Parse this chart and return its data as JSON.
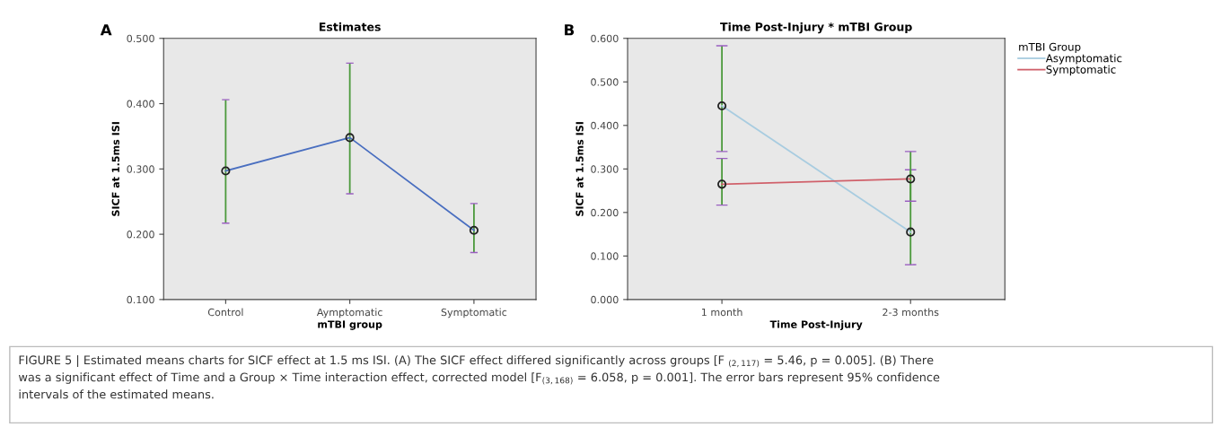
{
  "chart_data": [
    {
      "type": "line",
      "title": "Estimates",
      "xlabel": "mTBI group",
      "ylabel": "SICF at 1.5ms ISI",
      "categories": [
        "Control",
        "Aymptomatic",
        "Symptomatic"
      ],
      "series": [
        {
          "color": "#4a6fc0",
          "values": [
            0.297,
            0.348,
            0.206
          ],
          "errors": [
            [
              0.217,
              0.406
            ],
            [
              0.262,
              0.462
            ],
            [
              0.172,
              0.247
            ]
          ]
        }
      ],
      "ylim": [
        0.1,
        0.5
      ],
      "yticks": [
        {
          "value": 0.1,
          "label": "0.100"
        },
        {
          "value": 0.2,
          "label": "0.200"
        },
        {
          "value": 0.3,
          "label": "0.300"
        },
        {
          "value": 0.4,
          "label": "0.400"
        },
        {
          "value": 0.5,
          "label": "0.500"
        }
      ],
      "marker": "circle",
      "grid": false,
      "annotations": [
        "A",
        "FIGURE 5 | Estimated means charts for SICF effect at 1.5 ms ISI. (A) The SICF effect differed significantly across groups [F $_{(2,117)}$ = 5.46, p = 0.005]. (B) There\nwas a significant effect of Time and a Group × Time interaction effect, corrected model [F$_{(3,168)}$ = 6.058, p = 0.001]. The error bars represent 95% confidence\nintervals of the estimated means."
      ]
    },
    {
      "type": "line",
      "title": "Time Post-Injury * mTBI Group",
      "xlabel": "Time Post-Injury",
      "ylabel": "SICF at 1.5ms ISI",
      "categories": [
        "1 month",
        "2-3 months"
      ],
      "series": [
        {
          "name": "Asymptomatic",
          "color": "#a8cce0",
          "values": [
            0.445,
            0.155
          ],
          "errors": [
            [
              0.34,
              0.583
            ],
            [
              0.08,
              0.298
            ]
          ]
        },
        {
          "name": "Symptomatic",
          "color": "#d0606a",
          "values": [
            0.265,
            0.277
          ],
          "errors": [
            [
              0.217,
              0.324
            ],
            [
              0.226,
              0.34
            ]
          ]
        }
      ],
      "ylim": [
        0,
        0.6
      ],
      "yticks": [
        {
          "value": 0,
          "label": "0.000"
        },
        {
          "value": 0.1,
          "label": "0.100"
        },
        {
          "value": 0.2,
          "label": "0.200"
        },
        {
          "value": 0.3,
          "label": "0.300"
        },
        {
          "value": 0.4,
          "label": "0.400"
        },
        {
          "value": 0.5,
          "label": "0.500"
        },
        {
          "value": 0.6,
          "label": "0.600"
        }
      ],
      "marker": "circle",
      "grid": false,
      "legend": "right",
      "legend_title": "mTBI Group",
      "annotations": [
        "B"
      ]
    }
  ]
}
